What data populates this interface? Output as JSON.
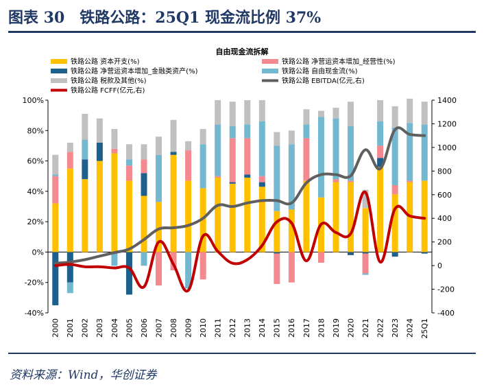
{
  "figure_title": "图表 30　铁路公路：25Q1 现金流比例 37%",
  "source": "资料来源：Wind，华创证券",
  "colors": {
    "capex": "#ffc000",
    "wc_fin": "#1f5f8b",
    "tax_other": "#c0c0c0",
    "wc_op": "#f4898f",
    "fcf": "#74b8d0",
    "ebitda": "#5f5f5f",
    "fcff": "#c00000",
    "text": "#000000",
    "title_navy": "#1f3864"
  },
  "chart_data": {
    "type": "bar",
    "title": "自由现金流拆解",
    "categories": [
      "2000",
      "2001",
      "2002",
      "2003",
      "2004",
      "2005",
      "2006",
      "2007",
      "2008",
      "2009",
      "2010",
      "2011",
      "2012",
      "2013",
      "2014",
      "2015",
      "2016",
      "2017",
      "2018",
      "2019",
      "2020",
      "2021",
      "2022",
      "2023",
      "2024",
      "25Q1"
    ],
    "ylim_left": [
      -40,
      100
    ],
    "yticks_left": [
      "-40%",
      "-20%",
      "0%",
      "20%",
      "40%",
      "60%",
      "80%",
      "100%"
    ],
    "ylim_right": [
      -400,
      1400
    ],
    "yticks_right": [
      "-400",
      "-200",
      "0",
      "200",
      "400",
      "600",
      "800",
      "1000",
      "1200",
      "1400"
    ],
    "grid": false,
    "legend_position": "top",
    "bar_series": [
      {
        "name": "铁路公路 资本开支(%)",
        "key": "capex",
        "values": [
          32,
          55,
          48,
          60,
          65,
          47,
          37,
          33,
          64,
          47,
          42,
          49,
          45,
          49,
          43,
          27,
          28,
          47,
          36,
          46,
          46,
          29,
          56,
          38,
          46,
          47
        ]
      },
      {
        "name": "铁路公路 净营运资本增加_金融类资产(%)",
        "key": "wc_fin",
        "values": [
          -35,
          -20,
          13,
          12,
          0,
          -28,
          15,
          0,
          2,
          0,
          0,
          0,
          1,
          2,
          3,
          -1,
          0,
          0,
          0,
          0,
          -2,
          -1,
          6,
          -3,
          0,
          -1
        ]
      },
      {
        "name": "铁路公路 净营运资本增加_经营性(%)",
        "key": "wc_op",
        "values": [
          18,
          11,
          0,
          0,
          3,
          10,
          9,
          -22,
          -12,
          20,
          -18,
          1,
          29,
          24,
          4,
          -20,
          -20,
          28,
          -7,
          2,
          1,
          -13,
          8,
          6,
          1,
          0
        ]
      },
      {
        "name": "铁路公路 自由现金流(%)",
        "key": "fcf",
        "values": [
          1,
          -7,
          13,
          0,
          -9,
          4,
          -9,
          31,
          0,
          -24,
          29,
          34,
          8,
          9,
          36,
          43,
          43,
          9,
          53,
          40,
          36,
          -1,
          16,
          38,
          38,
          37
        ]
      },
      {
        "name": "铁路公路 税款及其他(%)",
        "key": "tax_other",
        "values": [
          13,
          6,
          17,
          16,
          13,
          10,
          10,
          12,
          21,
          6,
          10,
          16,
          16,
          16,
          14,
          9,
          9,
          10,
          4,
          7,
          16,
          12,
          14,
          14,
          16,
          15
        ]
      }
    ],
    "line_series": [
      {
        "name": "铁路公路 EBITDA(亿元,右)",
        "key": "ebitda",
        "values": [
          20,
          30,
          50,
          80,
          110,
          140,
          220,
          310,
          320,
          340,
          400,
          510,
          500,
          530,
          550,
          550,
          530,
          700,
          770,
          770,
          760,
          980,
          820,
          1150,
          1110,
          1100
        ]
      },
      {
        "name": "铁路公路 FCFF(亿元,右)",
        "key": "fcff",
        "values": [
          0,
          10,
          -10,
          -10,
          -20,
          -20,
          -180,
          200,
          10,
          -210,
          250,
          120,
          20,
          50,
          170,
          370,
          360,
          40,
          350,
          280,
          270,
          620,
          30,
          480,
          420,
          400
        ]
      }
    ],
    "legend": [
      "铁路公路 资本开支(%)",
      "铁路公路 净营运资本增加_经营性(%)",
      "铁路公路 净营运资本增加_金融类资产(%)",
      "铁路公路 自由现金流(%)",
      "铁路公路 税款及其他(%)",
      "铁路公路 EBITDA(亿元,右)",
      "铁路公路 FCFF(亿元,右)"
    ]
  }
}
